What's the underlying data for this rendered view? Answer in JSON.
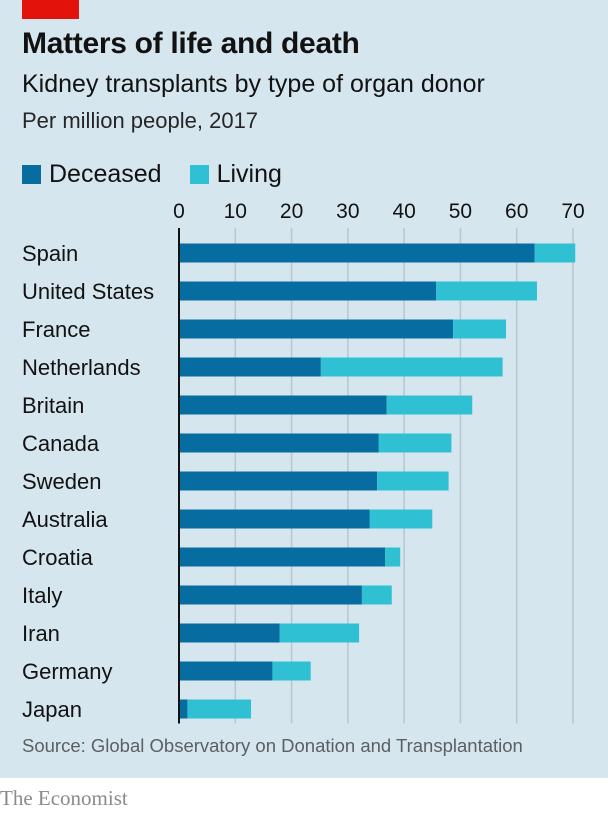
{
  "header": {
    "title": "Matters of life and death",
    "subtitle": "Kidney transplants by type of organ donor",
    "unit_note": "Per million people, 2017"
  },
  "legend": [
    {
      "label": "Deceased",
      "color": "#076ca0"
    },
    {
      "label": "Living",
      "color": "#2fc1d3"
    }
  ],
  "footer": {
    "source": "Source: Global Observatory on Donation and Transplantation",
    "brand": "The Economist"
  },
  "colors": {
    "accent": "#e3120b",
    "background": "#d6e6ef",
    "deceased": "#076ca0",
    "living": "#2fc1d3"
  },
  "chart_data": {
    "type": "bar",
    "orientation": "horizontal",
    "stacked": true,
    "title": "Matters of life and death",
    "subtitle": "Kidney transplants by type of organ donor",
    "xlabel": "Per million people, 2017",
    "ylabel": "",
    "xlim": [
      0,
      70
    ],
    "xticks": [
      0,
      10,
      20,
      30,
      40,
      50,
      60,
      70
    ],
    "grid": true,
    "legend_position": "top-left",
    "categories": [
      "Spain",
      "United States",
      "France",
      "Netherlands",
      "Britain",
      "Canada",
      "Sweden",
      "Australia",
      "Croatia",
      "Italy",
      "Iran",
      "Germany",
      "Japan"
    ],
    "series": [
      {
        "name": "Deceased",
        "values": [
          63.2,
          45.7,
          48.7,
          25.2,
          36.9,
          35.5,
          35.2,
          33.9,
          36.6,
          32.5,
          17.9,
          16.6,
          1.5
        ]
      },
      {
        "name": "Living",
        "values": [
          7.2,
          17.9,
          9.4,
          32.3,
          15.2,
          12.9,
          12.7,
          11.1,
          2.7,
          5.3,
          14.1,
          6.8,
          11.3
        ]
      }
    ],
    "source": "Source: Global Observatory on Donation and Transplantation"
  }
}
